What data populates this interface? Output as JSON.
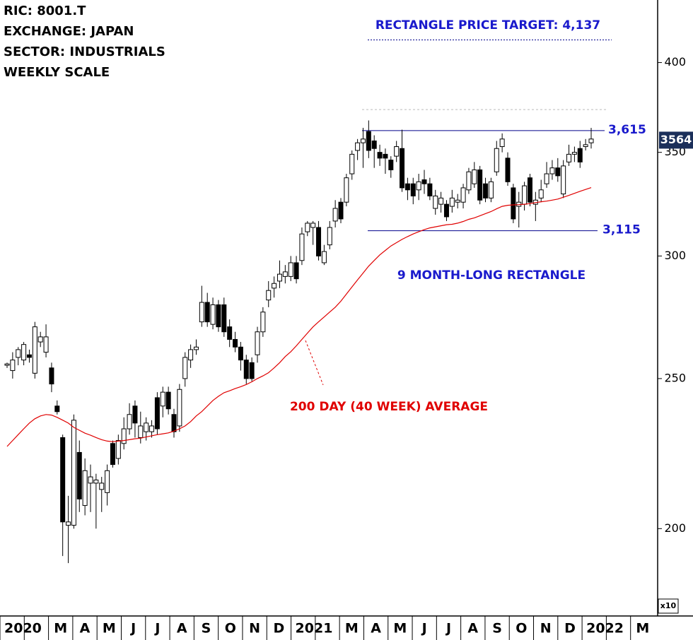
{
  "chart_data": {
    "type": "candlestick",
    "header": [
      "RIC: 8001.T",
      "EXCHANGE: JAPAN",
      "SECTOR: INDUSTRIALS",
      "WEEKLY SCALE"
    ],
    "log_scale": true,
    "ylim": [
      176,
      439
    ],
    "yticks": [
      200,
      250,
      300,
      350,
      400
    ],
    "y_multiplier": "x10",
    "months": [
      "2020",
      null,
      "M",
      "A",
      "M",
      "J",
      "J",
      "A",
      "S",
      "O",
      "N",
      "D",
      "2021",
      null,
      "M",
      "A",
      "M",
      "J",
      "J",
      "A",
      "S",
      "O",
      "N",
      "D",
      "2022",
      null,
      "M"
    ],
    "candles": [
      [
        255,
        256,
        254,
        255.5
      ],
      [
        253,
        260,
        250,
        257
      ],
      [
        258,
        262,
        255,
        261
      ],
      [
        257,
        264,
        255,
        263
      ],
      [
        259,
        261,
        256,
        258
      ],
      [
        252,
        272,
        250,
        270
      ],
      [
        264,
        268,
        262,
        266
      ],
      [
        260,
        271,
        258,
        266
      ],
      [
        254,
        256,
        245,
        248
      ],
      [
        240,
        242,
        237,
        238
      ],
      [
        229,
        230,
        192,
        202
      ],
      [
        201,
        210,
        190,
        202
      ],
      [
        201,
        237,
        200,
        235
      ],
      [
        224,
        228,
        205,
        209
      ],
      [
        207,
        222,
        204,
        218
      ],
      [
        214,
        220,
        205,
        216
      ],
      [
        214,
        217,
        200,
        215
      ],
      [
        212,
        216,
        205,
        214
      ],
      [
        211,
        220,
        207,
        218
      ],
      [
        227,
        228,
        219,
        220
      ],
      [
        222,
        230,
        220,
        228
      ],
      [
        227,
        236,
        225,
        232
      ],
      [
        232,
        241,
        230,
        237
      ],
      [
        240,
        242,
        229,
        234
      ],
      [
        229,
        238,
        227,
        233
      ],
      [
        231,
        236,
        228,
        234
      ],
      [
        231,
        235,
        229,
        233
      ],
      [
        243,
        245,
        230,
        232
      ],
      [
        240,
        247,
        236,
        245
      ],
      [
        245,
        247,
        237,
        239
      ],
      [
        237,
        239,
        229,
        231
      ],
      [
        233,
        248,
        231,
        246
      ],
      [
        250,
        260,
        247,
        258
      ],
      [
        257,
        263,
        254,
        261
      ],
      [
        261,
        265,
        259,
        262
      ],
      [
        272,
        287,
        270,
        280
      ],
      [
        280,
        284,
        270,
        272
      ],
      [
        271,
        282,
        269,
        279
      ],
      [
        279,
        281,
        268,
        270
      ],
      [
        279,
        282,
        266,
        268
      ],
      [
        270,
        273,
        262,
        265
      ],
      [
        265,
        268,
        260,
        262
      ],
      [
        262,
        264,
        253,
        257
      ],
      [
        257,
        259,
        248,
        250
      ],
      [
        256,
        258,
        249,
        250
      ],
      [
        259,
        270,
        256,
        268
      ],
      [
        268,
        278,
        266,
        276
      ],
      [
        281,
        289,
        278,
        285
      ],
      [
        286,
        291,
        282,
        288
      ],
      [
        289,
        298,
        286,
        292
      ],
      [
        291,
        296,
        288,
        293
      ],
      [
        291,
        300,
        289,
        297
      ],
      [
        297,
        300,
        288,
        290
      ],
      [
        298,
        313,
        296,
        310
      ],
      [
        311,
        316,
        309,
        315
      ],
      [
        313,
        316,
        305,
        315
      ],
      [
        313,
        316,
        298,
        300
      ],
      [
        297,
        305,
        296,
        302
      ],
      [
        305,
        316,
        303,
        313
      ],
      [
        316,
        326,
        313,
        322
      ],
      [
        325,
        327,
        315,
        317
      ],
      [
        325,
        339,
        323,
        337
      ],
      [
        339,
        351,
        336,
        349
      ],
      [
        351,
        357,
        346,
        355
      ],
      [
        355,
        363,
        342,
        357
      ],
      [
        361,
        367,
        347,
        351
      ],
      [
        356,
        359,
        342,
        352
      ],
      [
        350,
        354,
        343,
        347
      ],
      [
        349,
        352,
        339,
        347
      ],
      [
        346,
        348,
        337,
        341
      ],
      [
        348,
        356,
        345,
        353
      ],
      [
        352,
        362,
        330,
        332
      ],
      [
        334,
        337,
        326,
        331
      ],
      [
        334,
        337,
        324,
        328
      ],
      [
        331,
        339,
        326,
        335
      ],
      [
        336,
        341,
        329,
        334
      ],
      [
        334,
        337,
        326,
        328
      ],
      [
        322,
        331,
        319,
        328
      ],
      [
        324,
        330,
        320,
        327
      ],
      [
        324,
        326,
        316,
        318
      ],
      [
        323,
        331,
        320,
        327
      ],
      [
        325,
        329,
        322,
        326
      ],
      [
        325,
        334,
        322,
        332
      ],
      [
        331,
        342,
        329,
        340
      ],
      [
        334,
        345,
        332,
        341
      ],
      [
        341,
        343,
        324,
        326
      ],
      [
        334,
        337,
        325,
        327
      ],
      [
        327,
        337,
        325,
        335
      ],
      [
        340,
        356,
        338,
        352
      ],
      [
        353,
        360,
        350,
        357
      ],
      [
        347,
        350,
        333,
        335
      ],
      [
        332,
        334,
        315,
        317
      ],
      [
        323,
        330,
        313,
        325
      ],
      [
        324,
        335,
        321,
        333
      ],
      [
        337,
        339,
        323,
        325
      ],
      [
        324,
        330,
        316,
        326
      ],
      [
        327,
        336,
        325,
        331
      ],
      [
        334,
        345,
        332,
        339
      ],
      [
        339,
        346,
        336,
        342
      ],
      [
        342,
        347,
        335,
        338
      ],
      [
        329,
        346,
        327,
        343
      ],
      [
        345,
        354,
        343,
        349
      ],
      [
        349,
        353,
        345,
        350
      ],
      [
        352,
        356,
        342,
        345
      ],
      [
        353,
        357,
        351,
        354
      ],
      [
        355,
        363,
        352,
        357
      ]
    ],
    "ma": {
      "name": "200 DAY (40 WEEK) AVERAGE",
      "color": "#e00000",
      "values": [
        226,
        228,
        230,
        232,
        234,
        235.5,
        236.5,
        237,
        236.8,
        236,
        235,
        234,
        232.5,
        231.5,
        230.5,
        229.8,
        229,
        228.3,
        227.8,
        227.6,
        227.8,
        228,
        228.3,
        228.6,
        228.8,
        229.2,
        229.6,
        230,
        230.3,
        230.6,
        231.2,
        232,
        233,
        234.5,
        236.5,
        238,
        240,
        242,
        243.5,
        244.8,
        245.5,
        246.3,
        247,
        247.8,
        248.8,
        250,
        251,
        252.2,
        254,
        256,
        258.3,
        260.2,
        262.5,
        265,
        267.5,
        270,
        272,
        274,
        276,
        278,
        280.5,
        283.5,
        286.5,
        289.5,
        292.5,
        295.5,
        298,
        300.5,
        302.5,
        304.5,
        306,
        307.5,
        308.8,
        310,
        311,
        312,
        312.8,
        313.3,
        313.8,
        314.3,
        314.5,
        315,
        315.8,
        316.8,
        317.5,
        318.5,
        319.5,
        320.5,
        321.8,
        323,
        323.5,
        323.7,
        323.8,
        324,
        324.3,
        324.8,
        325.2,
        325.5,
        326,
        326.5,
        327.4,
        328.3,
        329.3,
        330.3,
        331.2,
        332.1
      ]
    },
    "levels": [
      {
        "value": 361.5,
        "label": "3,615"
      },
      {
        "value": 311.5,
        "label": "3,115"
      }
    ],
    "reference_line": 373,
    "target": {
      "text": "RECTANGLE PRICE TARGET: 4,137",
      "value": 413.7
    },
    "pattern_label": "9 MONTH-LONG RECTANGLE",
    "last_price": {
      "value": 356.4,
      "label": "3564"
    }
  }
}
